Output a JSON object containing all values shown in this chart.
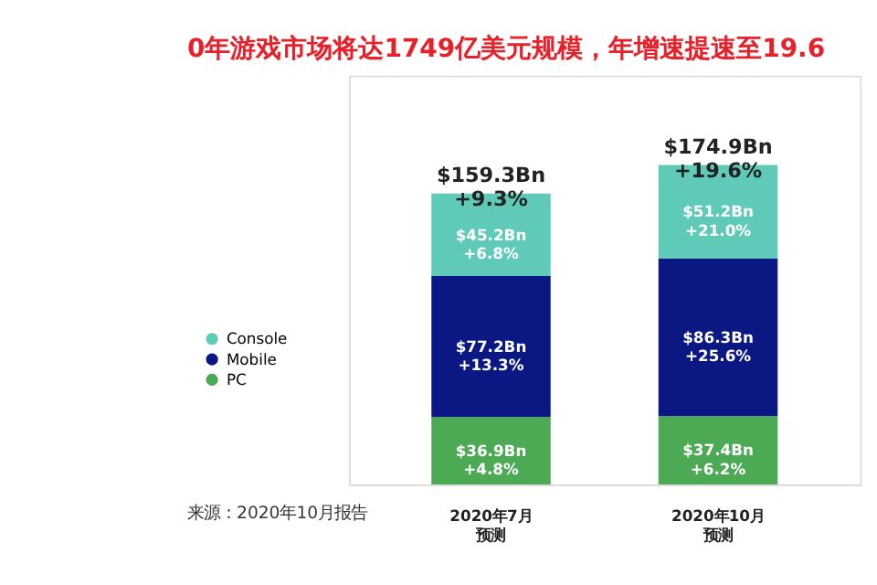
{
  "chart_data": {
    "type": "bar",
    "stacked": true,
    "title": "0年游戏市场将达1749亿美元规模，年增速提速至19.6",
    "categories": [
      "2020年7月预测",
      "2020年10月预测"
    ],
    "series": [
      {
        "name": "PC",
        "color": "#4caa55",
        "values": [
          36.9,
          37.4
        ],
        "value_labels": [
          "$36.9Bn\n+4.8%",
          "$37.4Bn\n+6.2%"
        ]
      },
      {
        "name": "Mobile",
        "color": "#0b1782",
        "values": [
          77.2,
          86.3
        ],
        "value_labels": [
          "$77.2Bn\n+13.3%",
          "$86.3Bn\n+25.6%"
        ]
      },
      {
        "name": "Console",
        "color": "#5fcab8",
        "values": [
          45.2,
          51.2
        ],
        "value_labels": [
          "$45.2Bn\n+6.8%",
          "$51.2Bn\n+21.0%"
        ]
      }
    ],
    "totals": [
      "$159.3Bn\n+9.3%",
      "$174.9Bn\n+19.6%"
    ],
    "legend": "left",
    "annotations": [
      "来源：2020年10月报告"
    ]
  }
}
